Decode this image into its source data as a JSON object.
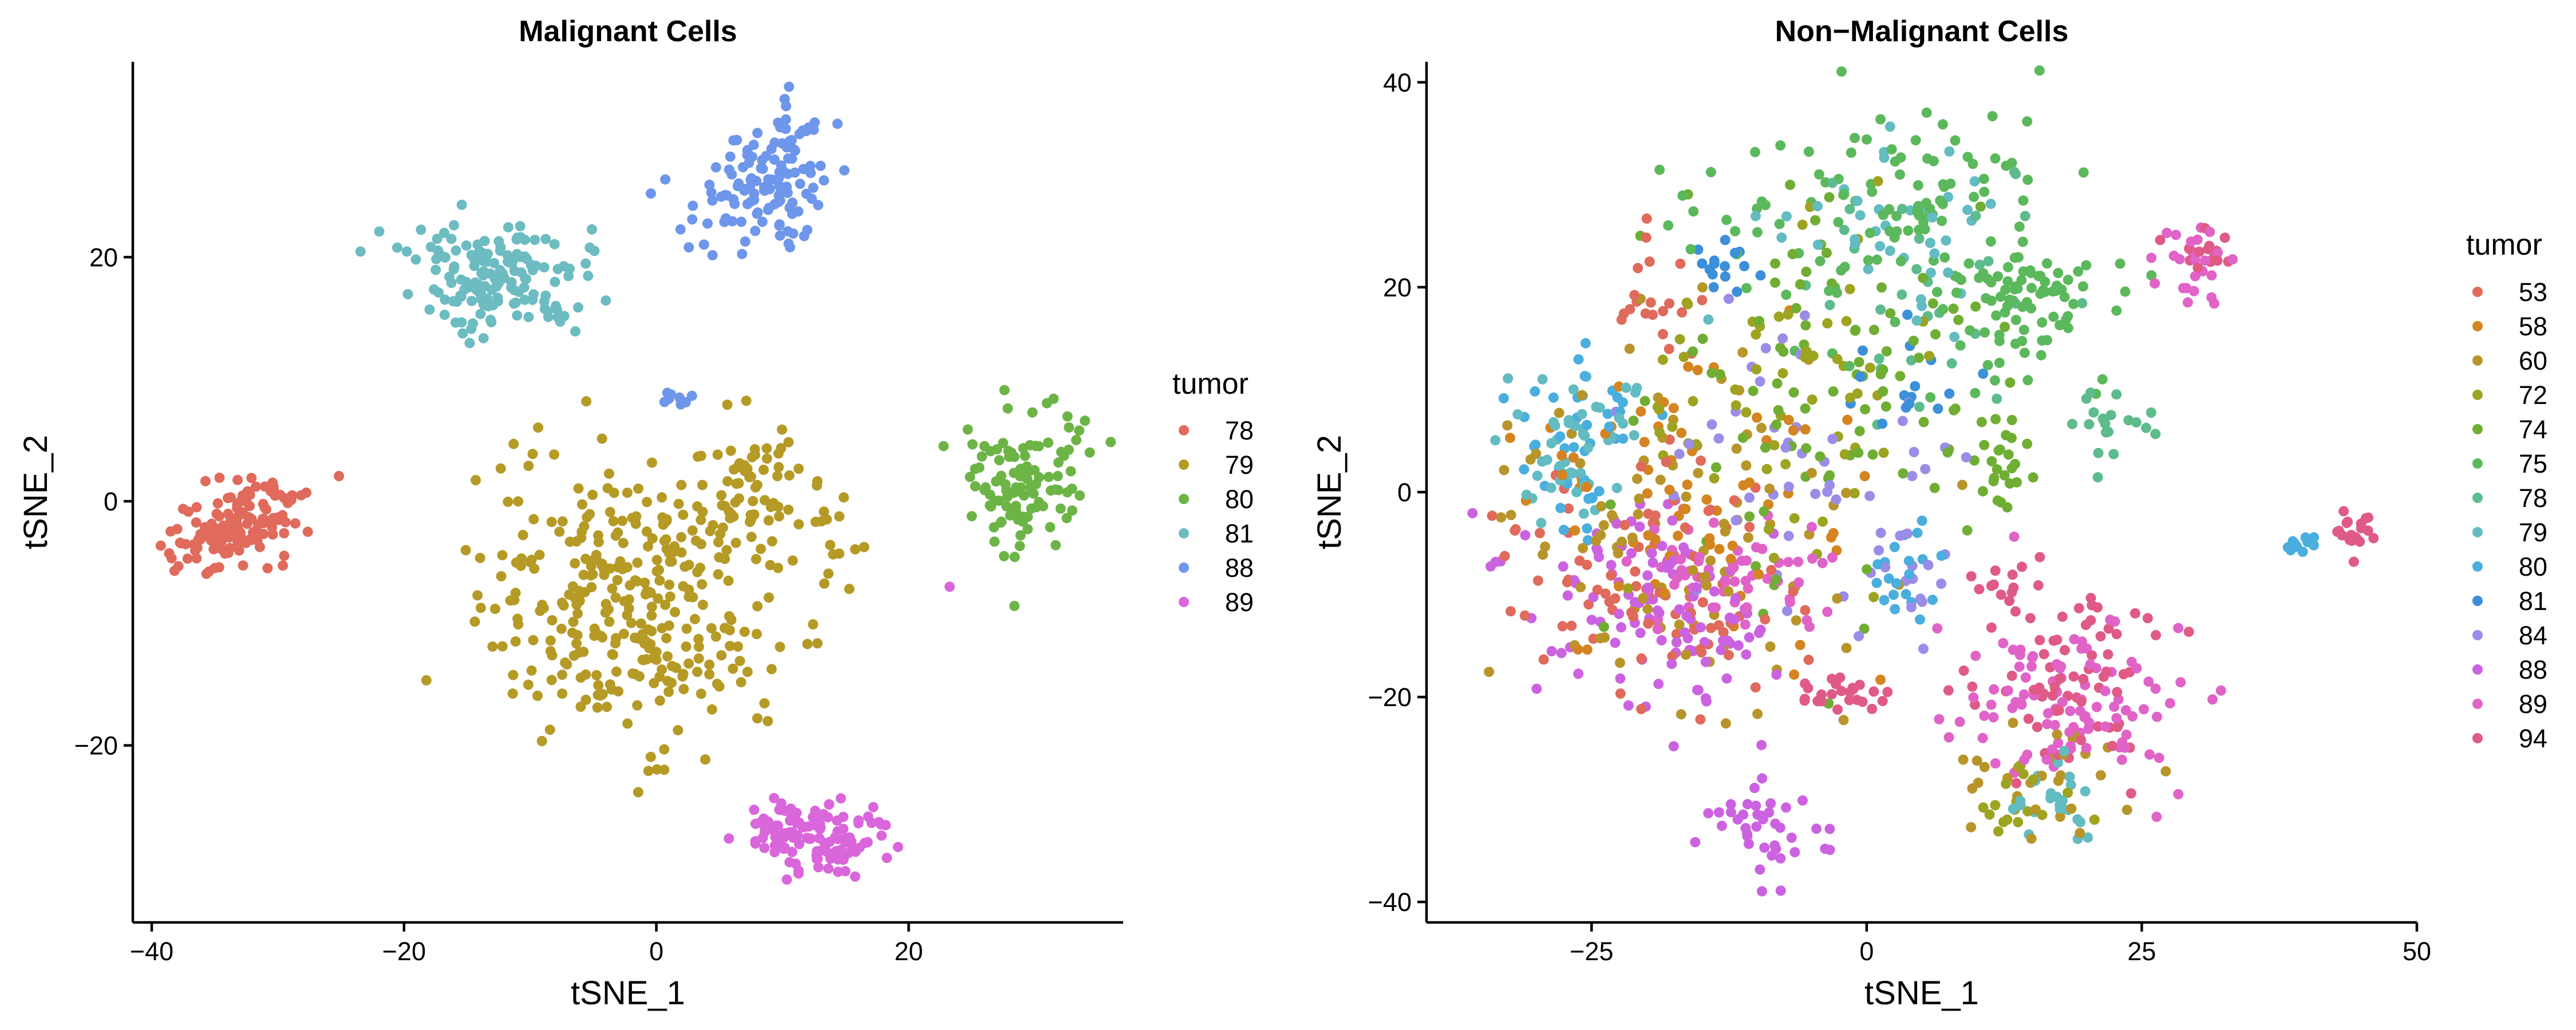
{
  "chart_data": [
    {
      "type": "scatter",
      "title": "Malignant Cells",
      "xlabel": "tSNE_1",
      "ylabel": "tSNE_2",
      "xlim": [
        -41.5,
        37
      ],
      "ylim": [
        -34.5,
        36
      ],
      "xticks": [
        -40,
        -20,
        0,
        20
      ],
      "yticks": [
        -20,
        0,
        20
      ],
      "xtick_labels": [
        "−40",
        "−20",
        "0",
        "20"
      ],
      "ytick_labels": [
        "−20",
        "0",
        "20"
      ],
      "grid": false,
      "legend": {
        "title": "tumor",
        "position": "right"
      },
      "series": [
        {
          "name": "78",
          "color": "#E06A5B",
          "clusters": [
            {
              "cx": -33,
              "cy": -2,
              "sx": 3.2,
              "sy": 1.4,
              "n": 150,
              "rot": 28
            }
          ]
        },
        {
          "name": "79",
          "color": "#B59A25",
          "clusters": [
            {
              "cx": -1.5,
              "cy": -8,
              "sx": 5.5,
              "sy": 5.6,
              "n": 330,
              "rot": 30
            },
            {
              "cx": 8,
              "cy": 1.5,
              "sx": 2.8,
              "sy": 2.2,
              "n": 60,
              "rot": 10
            },
            {
              "cx": 14,
              "cy": -3,
              "sx": 1.5,
              "sy": 1.5,
              "n": 10,
              "rot": 0
            }
          ]
        },
        {
          "name": "80",
          "color": "#6DB446",
          "clusters": [
            {
              "cx": 29.5,
              "cy": 1.5,
              "sx": 2.4,
              "sy": 3.0,
              "n": 110,
              "rot": -20
            }
          ]
        },
        {
          "name": "81",
          "color": "#6CBCC1",
          "clusters": [
            {
              "cx": -12.5,
              "cy": 18.5,
              "sx": 3.6,
              "sy": 2.3,
              "n": 150,
              "rot": -5
            }
          ]
        },
        {
          "name": "88",
          "color": "#6E96EA",
          "clusters": [
            {
              "cx": 9,
              "cy": 26.5,
              "sx": 2.2,
              "sy": 3.0,
              "n": 130,
              "rot": -35
            },
            {
              "cx": 1.2,
              "cy": 8.6,
              "sx": 1.0,
              "sy": 0.5,
              "n": 8,
              "rot": 0
            }
          ]
        },
        {
          "name": "89",
          "color": "#D966DB",
          "clusters": [
            {
              "cx": 12.5,
              "cy": -27.5,
              "sx": 2.6,
              "sy": 1.6,
              "n": 120,
              "rot": 0
            },
            {
              "cx": 23.5,
              "cy": -6.5,
              "sx": 0.3,
              "sy": 0.3,
              "n": 1,
              "rot": 0
            }
          ]
        }
      ]
    },
    {
      "type": "scatter",
      "title": "Non−Malignant Cells",
      "xlabel": "tSNE_1",
      "ylabel": "tSNE_2",
      "xlim": [
        -40,
        50
      ],
      "ylim": [
        -42,
        42
      ],
      "xticks": [
        -25,
        0,
        25,
        50
      ],
      "yticks": [
        -40,
        -20,
        0,
        20,
        40
      ],
      "xtick_labels": [
        "−25",
        "0",
        "25",
        "50"
      ],
      "ytick_labels": [
        "−40",
        "−20",
        "0",
        "20",
        "40"
      ],
      "grid": false,
      "legend": {
        "title": "tumor",
        "position": "right"
      },
      "series": [
        {
          "name": "53",
          "color": "#E06A5B",
          "clusters": [
            {
              "cx": -20,
              "cy": -8,
              "sx": 6,
              "sy": 6,
              "n": 90,
              "rot": 0
            },
            {
              "cx": -20,
              "cy": 18,
              "sx": 2,
              "sy": 3,
              "n": 20,
              "rot": 0
            }
          ]
        },
        {
          "name": "58",
          "color": "#D48420",
          "clusters": [
            {
              "cx": -15,
              "cy": 0,
              "sx": 7,
              "sy": 7,
              "n": 70,
              "rot": 0
            }
          ]
        },
        {
          "name": "60",
          "color": "#B8952A",
          "clusters": [
            {
              "cx": -18,
              "cy": -5,
              "sx": 8,
              "sy": 8,
              "n": 100,
              "rot": 0
            },
            {
              "cx": 17,
              "cy": -28,
              "sx": 4,
              "sy": 3,
              "n": 30,
              "rot": 0
            }
          ]
        },
        {
          "name": "72",
          "color": "#9EA320",
          "clusters": [
            {
              "cx": -10,
              "cy": 10,
              "sx": 8,
              "sy": 8,
              "n": 60,
              "rot": 0
            },
            {
              "cx": 15,
              "cy": -30,
              "sx": 3,
              "sy": 2,
              "n": 20,
              "rot": 0
            }
          ]
        },
        {
          "name": "74",
          "color": "#6FAE33",
          "clusters": [
            {
              "cx": -3,
              "cy": 10,
              "sx": 9,
              "sy": 10,
              "n": 90,
              "rot": 0
            },
            {
              "cx": 12,
              "cy": 3,
              "sx": 2,
              "sy": 3,
              "n": 25,
              "rot": 0
            }
          ]
        },
        {
          "name": "75",
          "color": "#5CB85C",
          "clusters": [
            {
              "cx": 2,
              "cy": 28,
              "sx": 7,
              "sy": 6,
              "n": 110,
              "rot": 0
            },
            {
              "cx": 14,
              "cy": 19,
              "sx": 4,
              "sy": 4,
              "n": 80,
              "rot": 0
            }
          ]
        },
        {
          "name": "78",
          "color": "#5DBB8C",
          "clusters": [
            {
              "cx": 22,
              "cy": 6,
              "sx": 2,
              "sy": 2,
              "n": 20,
              "rot": 0
            },
            {
              "cx": 5,
              "cy": 20,
              "sx": 6,
              "sy": 6,
              "n": 30,
              "rot": 0
            }
          ]
        },
        {
          "name": "79",
          "color": "#62BCC2",
          "clusters": [
            {
              "cx": -27,
              "cy": 5,
              "sx": 3,
              "sy": 4,
              "n": 50,
              "rot": 0
            },
            {
              "cx": 2,
              "cy": 25,
              "sx": 5,
              "sy": 5,
              "n": 40,
              "rot": 0
            },
            {
              "cx": 17,
              "cy": -30,
              "sx": 3,
              "sy": 2,
              "n": 25,
              "rot": 0
            }
          ]
        },
        {
          "name": "80",
          "color": "#4AAEDE",
          "clusters": [
            {
              "cx": -27,
              "cy": 6,
              "sx": 3,
              "sy": 5,
              "n": 40,
              "rot": 0
            },
            {
              "cx": 3,
              "cy": -9,
              "sx": 2,
              "sy": 3,
              "n": 20,
              "rot": 0
            },
            {
              "cx": 40,
              "cy": -5,
              "sx": 1,
              "sy": 0.5,
              "n": 10,
              "rot": 0
            }
          ]
        },
        {
          "name": "81",
          "color": "#3C8FD9",
          "clusters": [
            {
              "cx": -12,
              "cy": 22,
              "sx": 1.5,
              "sy": 1.5,
              "n": 15,
              "rot": 0
            },
            {
              "cx": 3,
              "cy": 10,
              "sx": 3,
              "sy": 3,
              "n": 15,
              "rot": 0
            }
          ]
        },
        {
          "name": "84",
          "color": "#9B8CE8",
          "clusters": [
            {
              "cx": -5,
              "cy": 5,
              "sx": 7,
              "sy": 7,
              "n": 45,
              "rot": 0
            },
            {
              "cx": 3,
              "cy": -8,
              "sx": 2,
              "sy": 3,
              "n": 15,
              "rot": 0
            }
          ]
        },
        {
          "name": "88",
          "color": "#CB63E0",
          "clusters": [
            {
              "cx": -18,
              "cy": -10,
              "sx": 7,
              "sy": 5,
              "n": 110,
              "rot": 0
            },
            {
              "cx": -10,
              "cy": -33,
              "sx": 3,
              "sy": 2,
              "n": 40,
              "rot": 0
            }
          ]
        },
        {
          "name": "89",
          "color": "#E063C8",
          "clusters": [
            {
              "cx": -12,
              "cy": -8,
              "sx": 5,
              "sy": 3,
              "n": 60,
              "rot": 0
            },
            {
              "cx": 18,
              "cy": -20,
              "sx": 5,
              "sy": 4,
              "n": 100,
              "rot": 0
            },
            {
              "cx": 30,
              "cy": 22,
              "sx": 2,
              "sy": 2,
              "n": 25,
              "rot": 0
            }
          ]
        },
        {
          "name": "94",
          "color": "#E05A86",
          "clusters": [
            {
              "cx": 18,
              "cy": -18,
              "sx": 5,
              "sy": 5,
              "n": 70,
              "rot": 0
            },
            {
              "cx": 44,
              "cy": -4,
              "sx": 1.2,
              "sy": 1,
              "n": 20,
              "rot": 0
            },
            {
              "cx": 31,
              "cy": 23,
              "sx": 1.5,
              "sy": 1.5,
              "n": 15,
              "rot": 0
            },
            {
              "cx": -2,
              "cy": -20,
              "sx": 2,
              "sy": 1.2,
              "n": 25,
              "rot": 0
            },
            {
              "cx": 12,
              "cy": -9,
              "sx": 2,
              "sy": 1,
              "n": 10,
              "rot": 0
            }
          ]
        }
      ]
    }
  ]
}
